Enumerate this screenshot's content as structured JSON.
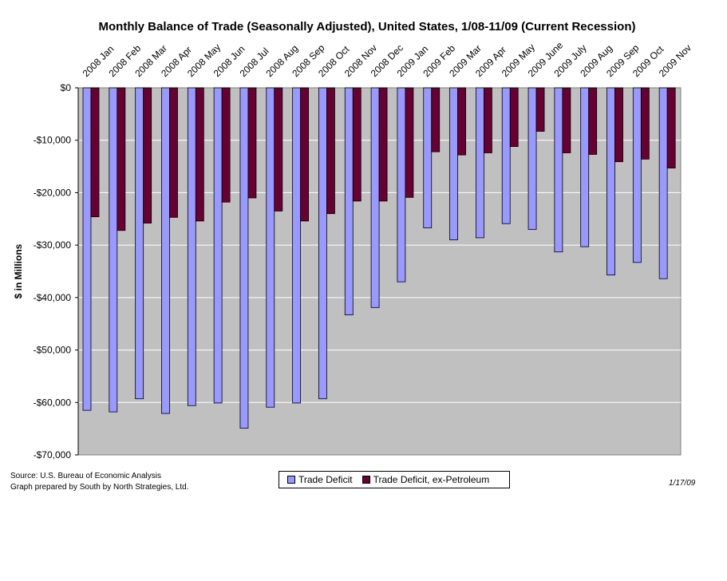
{
  "colors": {
    "plot_bg": "#c0c0c0",
    "trade_deficit": "#9999ff",
    "ex_petroleum": "#660033",
    "gridline": "#ffffff"
  },
  "chart_data": {
    "type": "bar",
    "title": "Monthly Balance of Trade (Seasonally Adjusted), United States, 1/08-11/09 (Current Recession)",
    "xlabel": "",
    "ylabel": "$ in Millions",
    "ylim": [
      -70000,
      0
    ],
    "yticks": [
      "$0",
      "-$10,000",
      "-$20,000",
      "-$30,000",
      "-$40,000",
      "-$50,000",
      "-$60,000",
      "-$70,000"
    ],
    "grid": true,
    "legend_position": "bottom-center",
    "categories": [
      "2008 Jan",
      "2008 Feb",
      "2008 Mar",
      "2008 Apr",
      "2008 May",
      "2008 Jun",
      "2008 Jul",
      "2008 Aug",
      "2008 Sep",
      "2008 Oct",
      "2008 Nov",
      "2008 Dec",
      "2009 Jan",
      "2009 Feb",
      "2009 Mar",
      "2009 Apr",
      "2009 May",
      "2009 June",
      "2009 July",
      "2009 Aug",
      "2009 Sep",
      "2009 Oct",
      "2009 Nov"
    ],
    "series": [
      {
        "name": "Trade Deficit",
        "values": [
          -61500,
          -61800,
          -59300,
          -62100,
          -60600,
          -60100,
          -64900,
          -60900,
          -60100,
          -59300,
          -43300,
          -41900,
          -37000,
          -26700,
          -29000,
          -28600,
          -25900,
          -27000,
          -31300,
          -30300,
          -35700,
          -33300,
          -36400
        ]
      },
      {
        "name": "Trade Deficit, ex-Petroleum",
        "values": [
          -24600,
          -27200,
          -25800,
          -24700,
          -25400,
          -21800,
          -21000,
          -23500,
          -25400,
          -24000,
          -21600,
          -21600,
          -20900,
          -12200,
          -12800,
          -12400,
          -11200,
          -8300,
          -12400,
          -12700,
          -14100,
          -13600,
          -15300
        ]
      }
    ]
  },
  "notes": {
    "source_line1": "Source: U.S. Bureau of Economic Analysis",
    "source_line2": "Graph prepared by South by North Strategies, Ltd.",
    "date": "1/17/09"
  }
}
